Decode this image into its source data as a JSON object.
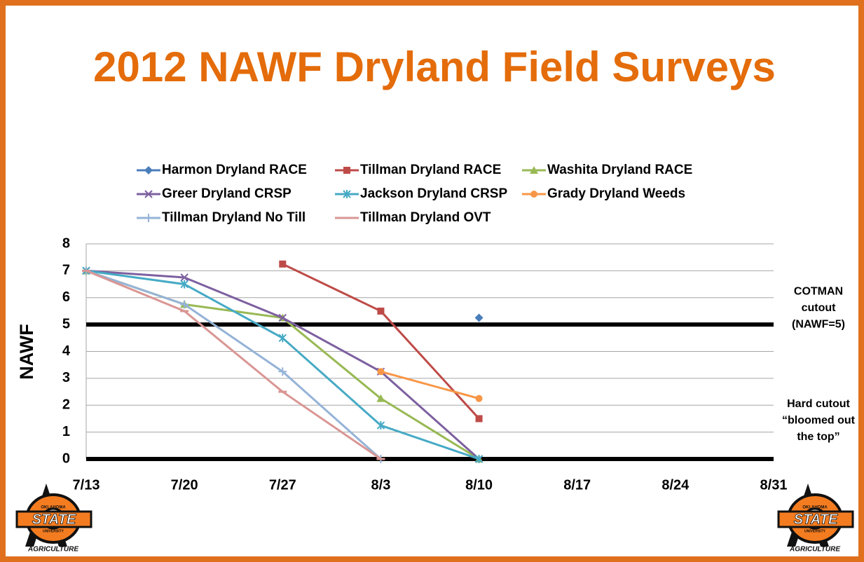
{
  "chart_data": {
    "type": "line",
    "title": "2012 NAWF Dryland Field Surveys",
    "y_label": "NAWF",
    "categories": [
      "7/13",
      "7/20",
      "7/27",
      "8/3",
      "8/10",
      "8/17",
      "8/24",
      "8/31"
    ],
    "ylim": [
      0,
      8
    ],
    "yticks": [
      0,
      1,
      2,
      3,
      4,
      5,
      6,
      7,
      8
    ],
    "grid": true,
    "legend": "top",
    "series": [
      {
        "name": "Harmon Dryland RACE",
        "color": "#4a7ebb",
        "marker": "diamond",
        "values": [
          null,
          null,
          null,
          null,
          5.25,
          null,
          null,
          null
        ]
      },
      {
        "name": "Tillman Dryland RACE",
        "color": "#be4b48",
        "marker": "square",
        "values": [
          null,
          null,
          7.25,
          5.5,
          1.5,
          null,
          null,
          null
        ]
      },
      {
        "name": "Washita Dryland RACE",
        "color": "#98b954",
        "marker": "triangle",
        "values": [
          7,
          5.75,
          5.25,
          2.25,
          0,
          null,
          null,
          null
        ]
      },
      {
        "name": "Greer Dryland CRSP",
        "color": "#7d60a0",
        "marker": "x",
        "values": [
          7,
          6.75,
          5.25,
          3.25,
          0,
          null,
          null,
          null
        ]
      },
      {
        "name": "Jackson Dryland CRSP",
        "color": "#46aac5",
        "marker": "asterisk",
        "values": [
          7,
          6.5,
          4.5,
          1.25,
          0,
          null,
          null,
          null
        ]
      },
      {
        "name": "Grady Dryland Weeds",
        "color": "#f79646",
        "marker": "circle",
        "values": [
          null,
          null,
          null,
          3.25,
          2.25,
          null,
          null,
          null
        ]
      },
      {
        "name": "Tillman Dryland No Till",
        "color": "#95b3d7",
        "marker": "plus",
        "values": [
          7,
          5.75,
          3.25,
          0,
          null,
          null,
          null,
          null
        ]
      },
      {
        "name": "Tillman Dryland OVT",
        "color": "#d99694",
        "marker": "dash",
        "values": [
          7,
          5.5,
          2.5,
          0,
          null,
          null,
          null,
          null
        ]
      }
    ],
    "reference_lines": [
      {
        "value": 5,
        "color": "#000000",
        "label": [
          "COTMAN",
          "cutout",
          "(NAWF=5)"
        ]
      },
      {
        "value": 0,
        "color": "#000000",
        "label": [
          "Hard cutout",
          "“bloomed out",
          "the top”"
        ]
      }
    ]
  },
  "logo": {
    "top": "OKLAHOMA",
    "main": "STATE",
    "sub": "UNIVERSITY",
    "footer": "AGRICULTURE"
  }
}
